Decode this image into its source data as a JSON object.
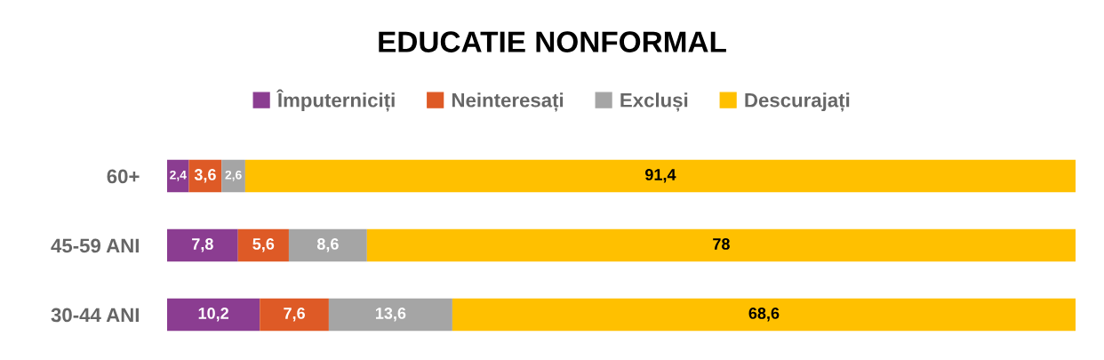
{
  "chart_data": {
    "type": "bar",
    "orientation": "horizontal",
    "stacked": true,
    "title": "EDUCATIE NONFORMAL",
    "categories": [
      "60+",
      "45-59 ANI",
      "30-44 ANI"
    ],
    "series": [
      {
        "name": "Împuterniciți",
        "color": "#8b3d91",
        "values": [
          2.4,
          7.8,
          10.2
        ],
        "value_labels": [
          "2,4",
          "7,8",
          "10,2"
        ]
      },
      {
        "name": "Neinteresați",
        "color": "#de5a26",
        "values": [
          3.6,
          5.6,
          7.6
        ],
        "value_labels": [
          "3,6",
          "5,6",
          "7,6"
        ]
      },
      {
        "name": "Excluși",
        "color": "#a5a5a5",
        "values": [
          2.6,
          8.6,
          13.6
        ],
        "value_labels": [
          "2,6",
          "8,6",
          "13,6"
        ]
      },
      {
        "name": "Descurajați",
        "color": "#ffc000",
        "values": [
          91.4,
          78,
          68.6
        ],
        "value_labels": [
          "91,4",
          "78",
          "68,6"
        ]
      }
    ],
    "legend": "top",
    "grid": false,
    "tick_labels": "y"
  }
}
